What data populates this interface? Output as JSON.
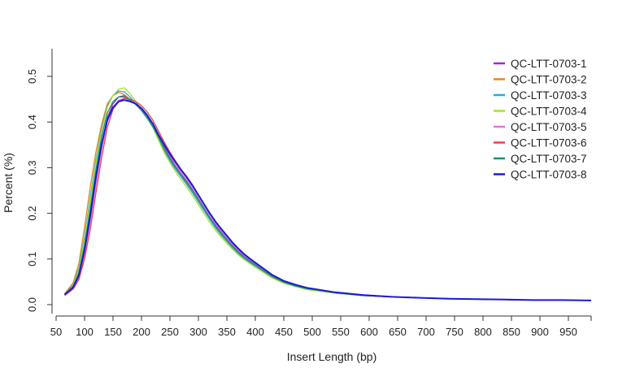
{
  "chart_data": {
    "type": "line",
    "title": "",
    "xlabel": "Insert Length (bp)",
    "ylabel": "Percent (%)",
    "xlim": [
      75,
      1000
    ],
    "ylim": [
      0,
      0.55
    ],
    "x_ticks": [
      "50",
      "100",
      "150",
      "200",
      "250",
      "300",
      "350",
      "400",
      "450",
      "500",
      "550",
      "600",
      "650",
      "700",
      "750",
      "800",
      "850",
      "900",
      "950"
    ],
    "y_ticks": [
      "0.0",
      "0.1",
      "0.2",
      "0.3",
      "0.4",
      "0.5"
    ],
    "legend_position": "top-right",
    "x": [
      75,
      90,
      100,
      110,
      120,
      130,
      140,
      150,
      160,
      170,
      180,
      190,
      200,
      210,
      220,
      230,
      240,
      250,
      260,
      270,
      280,
      290,
      300,
      310,
      320,
      330,
      340,
      350,
      360,
      370,
      380,
      390,
      400,
      420,
      440,
      460,
      480,
      500,
      550,
      600,
      650,
      700,
      750,
      800,
      850,
      900,
      950,
      1000
    ],
    "series": [
      {
        "name": "QC-LTT-0703-1",
        "color": "#9b2fc8",
        "values": [
          0.022,
          0.038,
          0.062,
          0.118,
          0.19,
          0.275,
          0.35,
          0.41,
          0.44,
          0.455,
          0.458,
          0.45,
          0.44,
          0.43,
          0.415,
          0.395,
          0.37,
          0.345,
          0.322,
          0.302,
          0.285,
          0.27,
          0.252,
          0.232,
          0.212,
          0.192,
          0.175,
          0.16,
          0.145,
          0.13,
          0.118,
          0.107,
          0.097,
          0.08,
          0.062,
          0.05,
          0.042,
          0.035,
          0.026,
          0.02,
          0.017,
          0.015,
          0.013,
          0.012,
          0.011,
          0.01,
          0.01,
          0.009
        ]
      },
      {
        "name": "QC-LTT-0703-2",
        "color": "#e8841f",
        "values": [
          0.024,
          0.048,
          0.09,
          0.17,
          0.258,
          0.335,
          0.395,
          0.44,
          0.458,
          0.465,
          0.46,
          0.45,
          0.438,
          0.425,
          0.408,
          0.388,
          0.362,
          0.338,
          0.318,
          0.3,
          0.283,
          0.265,
          0.247,
          0.228,
          0.208,
          0.188,
          0.17,
          0.155,
          0.14,
          0.126,
          0.113,
          0.102,
          0.093,
          0.076,
          0.06,
          0.049,
          0.041,
          0.034,
          0.025,
          0.02,
          0.017,
          0.015,
          0.013,
          0.012,
          0.011,
          0.01,
          0.01,
          0.009
        ]
      },
      {
        "name": "QC-LTT-0703-3",
        "color": "#2ba9d9",
        "values": [
          0.023,
          0.044,
          0.08,
          0.15,
          0.235,
          0.318,
          0.385,
          0.435,
          0.458,
          0.468,
          0.466,
          0.455,
          0.44,
          0.425,
          0.408,
          0.388,
          0.362,
          0.336,
          0.315,
          0.296,
          0.279,
          0.262,
          0.244,
          0.225,
          0.205,
          0.186,
          0.168,
          0.152,
          0.138,
          0.124,
          0.112,
          0.101,
          0.092,
          0.075,
          0.059,
          0.048,
          0.04,
          0.034,
          0.025,
          0.02,
          0.017,
          0.015,
          0.013,
          0.012,
          0.011,
          0.01,
          0.01,
          0.009
        ]
      },
      {
        "name": "QC-LTT-0703-4",
        "color": "#a6e22e",
        "values": [
          0.022,
          0.042,
          0.076,
          0.142,
          0.226,
          0.31,
          0.38,
          0.432,
          0.458,
          0.472,
          0.475,
          0.462,
          0.445,
          0.428,
          0.41,
          0.388,
          0.36,
          0.333,
          0.311,
          0.291,
          0.273,
          0.256,
          0.238,
          0.219,
          0.199,
          0.18,
          0.163,
          0.148,
          0.134,
          0.121,
          0.109,
          0.099,
          0.09,
          0.074,
          0.058,
          0.047,
          0.04,
          0.033,
          0.025,
          0.02,
          0.017,
          0.015,
          0.013,
          0.012,
          0.011,
          0.01,
          0.01,
          0.009
        ]
      },
      {
        "name": "QC-LTT-0703-5",
        "color": "#e571d6",
        "values": [
          0.021,
          0.035,
          0.058,
          0.11,
          0.18,
          0.262,
          0.338,
          0.4,
          0.432,
          0.448,
          0.452,
          0.447,
          0.44,
          0.43,
          0.415,
          0.396,
          0.372,
          0.348,
          0.326,
          0.306,
          0.288,
          0.272,
          0.254,
          0.234,
          0.214,
          0.194,
          0.177,
          0.161,
          0.146,
          0.132,
          0.119,
          0.108,
          0.098,
          0.081,
          0.063,
          0.051,
          0.043,
          0.036,
          0.026,
          0.02,
          0.017,
          0.015,
          0.013,
          0.012,
          0.011,
          0.01,
          0.01,
          0.009
        ]
      },
      {
        "name": "QC-LTT-0703-6",
        "color": "#e8414e",
        "values": [
          0.02,
          0.034,
          0.055,
          0.1,
          0.165,
          0.245,
          0.322,
          0.388,
          0.428,
          0.445,
          0.452,
          0.45,
          0.445,
          0.436,
          0.422,
          0.404,
          0.38,
          0.356,
          0.334,
          0.314,
          0.296,
          0.28,
          0.262,
          0.241,
          0.22,
          0.199,
          0.181,
          0.165,
          0.15,
          0.135,
          0.122,
          0.11,
          0.1,
          0.082,
          0.064,
          0.052,
          0.043,
          0.036,
          0.027,
          0.021,
          0.017,
          0.015,
          0.013,
          0.012,
          0.011,
          0.01,
          0.01,
          0.009
        ]
      },
      {
        "name": "QC-LTT-0703-7",
        "color": "#1b8f6e",
        "values": [
          0.022,
          0.04,
          0.07,
          0.13,
          0.21,
          0.295,
          0.368,
          0.42,
          0.445,
          0.455,
          0.455,
          0.448,
          0.438,
          0.426,
          0.41,
          0.39,
          0.366,
          0.342,
          0.32,
          0.3,
          0.283,
          0.267,
          0.249,
          0.23,
          0.21,
          0.19,
          0.172,
          0.157,
          0.142,
          0.128,
          0.115,
          0.104,
          0.095,
          0.078,
          0.061,
          0.049,
          0.041,
          0.035,
          0.026,
          0.02,
          0.017,
          0.015,
          0.013,
          0.012,
          0.011,
          0.01,
          0.01,
          0.009
        ]
      },
      {
        "name": "QC-LTT-0703-8",
        "color": "#1a1ad6",
        "values": [
          0.022,
          0.038,
          0.064,
          0.12,
          0.195,
          0.28,
          0.352,
          0.405,
          0.432,
          0.445,
          0.448,
          0.445,
          0.44,
          0.43,
          0.415,
          0.396,
          0.372,
          0.35,
          0.33,
          0.312,
          0.294,
          0.278,
          0.26,
          0.24,
          0.22,
          0.2,
          0.182,
          0.166,
          0.151,
          0.136,
          0.123,
          0.111,
          0.101,
          0.083,
          0.065,
          0.052,
          0.044,
          0.037,
          0.027,
          0.021,
          0.017,
          0.015,
          0.013,
          0.012,
          0.011,
          0.01,
          0.01,
          0.009
        ]
      }
    ]
  }
}
